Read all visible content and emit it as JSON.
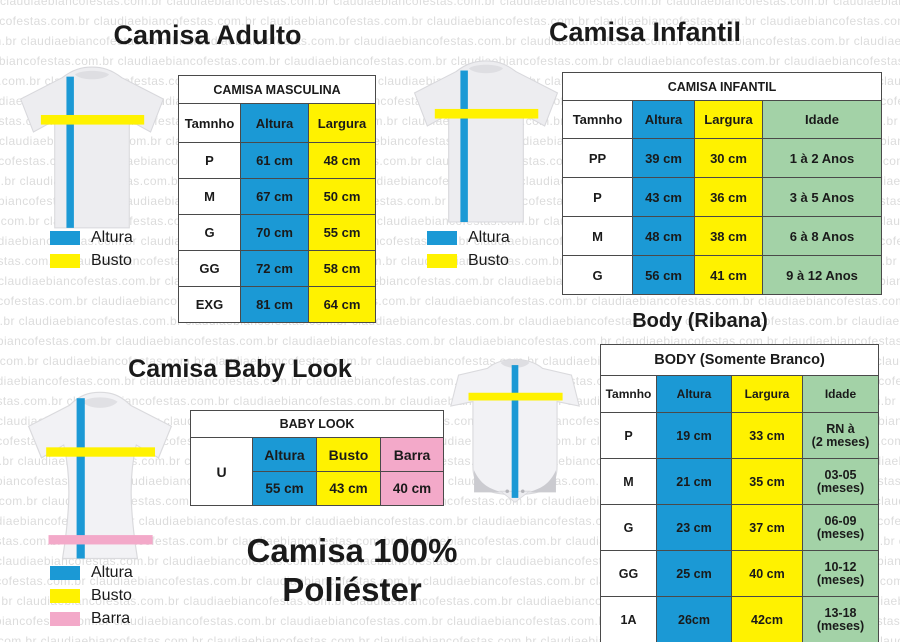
{
  "watermark": {
    "text": "claudiaebiancofestas.com.br"
  },
  "colors": {
    "altura_blue": "#1B99D5",
    "busto_yellow": "#FFF200",
    "idade_green": "#A3D2A7",
    "barra_pink": "#F3A9C9",
    "table_border": "#4A4A4A",
    "watermark_gray": "#DCDCDC"
  },
  "sections": {
    "adult": {
      "title": "Camisa Adulto",
      "legend": [
        {
          "label": "Altura"
        },
        {
          "label": "Busto"
        }
      ],
      "table": {
        "title": "CAMISA MASCULINA",
        "headers": [
          "Tamnho",
          "Altura",
          "Largura"
        ],
        "rows": [
          {
            "size": "P",
            "altura": "61 cm",
            "largura": "48 cm"
          },
          {
            "size": "M",
            "altura": "67 cm",
            "largura": "50 cm"
          },
          {
            "size": "G",
            "altura": "70 cm",
            "largura": "55 cm"
          },
          {
            "size": "GG",
            "altura": "72 cm",
            "largura": "58 cm"
          },
          {
            "size": "EXG",
            "altura": "81 cm",
            "largura": "64 cm"
          }
        ]
      }
    },
    "infantil": {
      "title": "Camisa Infantil",
      "legend": [
        {
          "label": "Altura"
        },
        {
          "label": "Busto"
        }
      ],
      "table": {
        "title": "CAMISA INFANTIL",
        "headers": [
          "Tamnho",
          "Altura",
          "Largura",
          "Idade"
        ],
        "rows": [
          {
            "size": "PP",
            "altura": "39 cm",
            "largura": "30 cm",
            "idade": "1 à 2 Anos"
          },
          {
            "size": "P",
            "altura": "43 cm",
            "largura": "36 cm",
            "idade": "3 à 5 Anos"
          },
          {
            "size": "M",
            "altura": "48 cm",
            "largura": "38 cm",
            "idade": "6 à 8 Anos"
          },
          {
            "size": "G",
            "altura": "56 cm",
            "largura": "41 cm",
            "idade": "9 à 12 Anos"
          }
        ]
      }
    },
    "babylook": {
      "title": "Camisa Baby Look",
      "legend": [
        {
          "label": "Altura"
        },
        {
          "label": "Busto"
        },
        {
          "label": "Barra"
        }
      ],
      "table": {
        "title": "BABY LOOK",
        "size": "U",
        "headers": [
          "Altura",
          "Busto",
          "Barra"
        ],
        "values": [
          "55 cm",
          "43 cm",
          "40 cm"
        ]
      }
    },
    "body": {
      "title": "Body (Ribana)",
      "table": {
        "title": "BODY (Somente Branco)",
        "headers": [
          "Tamnho",
          "Altura",
          "Largura",
          "Idade"
        ],
        "rows": [
          {
            "size": "P",
            "altura": "19 cm",
            "largura": "33 cm",
            "idade_line1": "RN à",
            "idade_line2": "(2 meses)"
          },
          {
            "size": "M",
            "altura": "21 cm",
            "largura": "35 cm",
            "idade_line1": "03-05",
            "idade_line2": "(meses)"
          },
          {
            "size": "G",
            "altura": "23 cm",
            "largura": "37 cm",
            "idade_line1": "06-09",
            "idade_line2": "(meses)"
          },
          {
            "size": "GG",
            "altura": "25 cm",
            "largura": "40 cm",
            "idade_line1": "10-12",
            "idade_line2": "(meses)"
          },
          {
            "size": "1A",
            "altura": "26cm",
            "largura": "42cm",
            "idade_line1": "13-18",
            "idade_line2": "(meses)"
          }
        ]
      }
    },
    "footer": {
      "line1": "Camisa 100%",
      "line2": "Poliéster"
    }
  }
}
